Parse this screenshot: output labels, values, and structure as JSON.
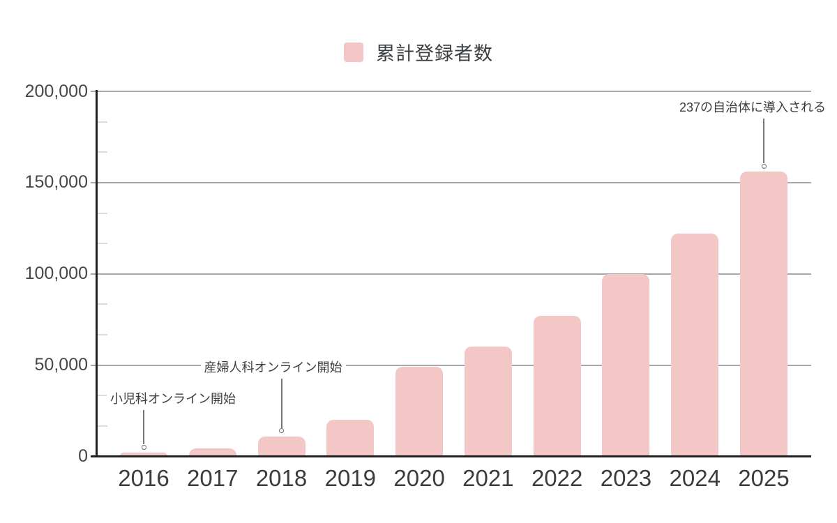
{
  "legend": {
    "label": "累計登録者数"
  },
  "chart_data": {
    "type": "bar",
    "series_name": "累計登録者数",
    "categories": [
      "2016",
      "2017",
      "2018",
      "2019",
      "2020",
      "2021",
      "2022",
      "2023",
      "2024",
      "2025"
    ],
    "values": [
      2000,
      4500,
      11000,
      20000,
      49000,
      60000,
      77000,
      100000,
      122000,
      156000
    ],
    "ylim": [
      0,
      200000
    ],
    "ytick_interval": 50000,
    "ytick_labels": [
      "0",
      "50,000",
      "100,000",
      "150,000",
      "200,000"
    ],
    "xlabel": "",
    "ylabel": "",
    "grid": "horizontal major gridlines every 50,000; short minor ticks on y-axis at 1/3 of major interval",
    "legend_position": "top-center",
    "annotations": [
      {
        "text": "小児科オンライン開始",
        "category": "2016"
      },
      {
        "text": "産婦人科オンライン開始",
        "category": "2018"
      },
      {
        "text": "237の自治体に導入される",
        "category": "2025"
      }
    ],
    "colors": {
      "bar": "#f4c7c7",
      "axis": "#212121",
      "major_gridline": "#a7a7ae",
      "minor_tick": "#dcdcdc",
      "label_text": "#45474a",
      "annotation_text": "#3b3e41",
      "annotation_line": "#757575",
      "background": "#ffffff"
    }
  }
}
